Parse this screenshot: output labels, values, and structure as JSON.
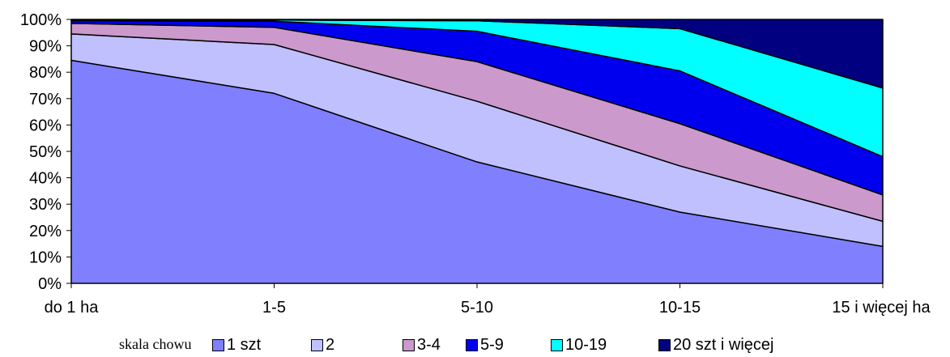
{
  "chart_data": {
    "type": "area",
    "stacked": true,
    "title": "",
    "xlabel": "",
    "ylabel": "",
    "ylim": [
      0,
      100
    ],
    "y_tick_labels": [
      "0%",
      "10%",
      "20%",
      "30%",
      "40%",
      "50%",
      "60%",
      "70%",
      "80%",
      "90%",
      "100%"
    ],
    "categories": [
      "do 1 ha",
      "1-5",
      "5-10",
      "10-15",
      "15 i więcej ha"
    ],
    "series": [
      {
        "name": "1 szt",
        "color": "#8080ff",
        "values": [
          84.5,
          72,
          46,
          27,
          14
        ]
      },
      {
        "name": "2",
        "color": "#c0c0ff",
        "values": [
          10,
          18.5,
          23,
          17.5,
          9.5
        ]
      },
      {
        "name": "3-4",
        "color": "#cc99cc",
        "values": [
          4,
          6.5,
          15,
          16,
          10
        ]
      },
      {
        "name": "5-9",
        "color": "#0000ee",
        "values": [
          1,
          2.3,
          11.5,
          20,
          14.5
        ]
      },
      {
        "name": "10-19",
        "color": "#00ffff",
        "values": [
          0.3,
          0.5,
          4,
          16,
          26
        ]
      },
      {
        "name": "20 szt i więcej",
        "color": "#000080",
        "values": [
          0.2,
          0.2,
          0.5,
          3.5,
          26
        ]
      }
    ],
    "grid": false,
    "legend": {
      "title": "skala chowu",
      "position": "bottom"
    }
  }
}
